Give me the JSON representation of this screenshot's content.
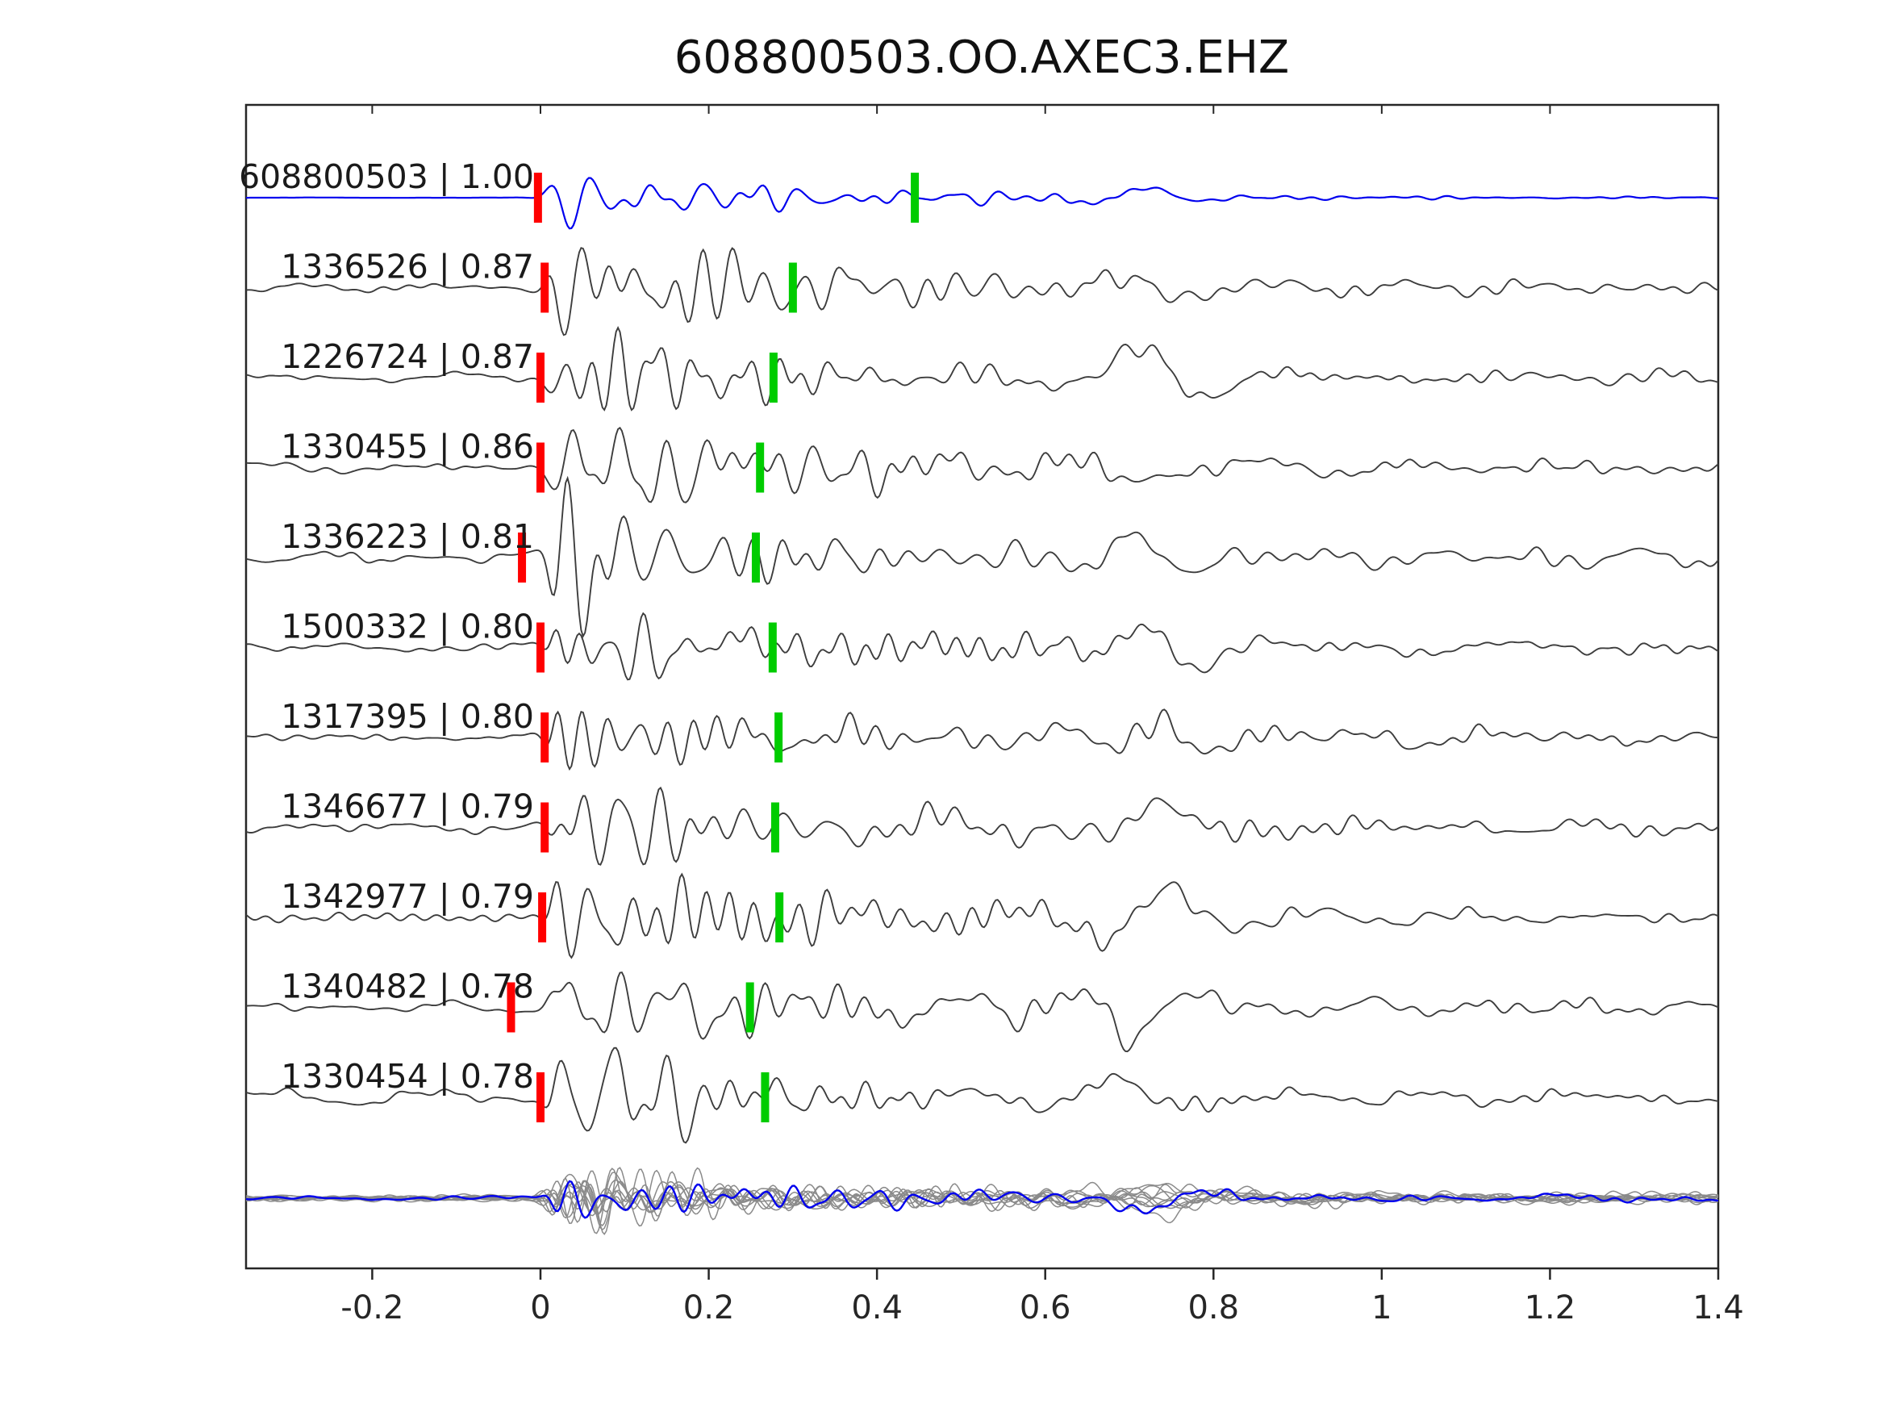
{
  "title": "608800503.OO.AXEC3.EHZ",
  "chart_data": {
    "type": "line",
    "title": "608800503.OO.AXEC3.EHZ",
    "description": "Template-matching detection waveforms: template trace (blue) with 10 detected event traces (gray), red pick markers near t=0 and green pick markers near t=0.25-0.45, plus all traces stacked/overlaid on the bottom row.",
    "x_axis": {
      "min": -0.35,
      "max": 1.4,
      "ticks": [
        -0.2,
        0,
        0.2,
        0.4,
        0.6,
        0.8,
        1,
        1.2,
        1.4
      ],
      "tick_labels": [
        "-0.2",
        "0",
        "0.2",
        "0.4",
        "0.6",
        "0.8",
        "1",
        "1.2",
        "1.4"
      ]
    },
    "traces": [
      {
        "label": "608800503 | 1.00",
        "id": "608800503",
        "correlation": 1.0,
        "is_template": true,
        "red_pick_x": -0.003,
        "green_pick_x": 0.445
      },
      {
        "label": "1336526 | 0.87",
        "id": "1336526",
        "correlation": 0.87,
        "is_template": false,
        "red_pick_x": 0.005,
        "green_pick_x": 0.3
      },
      {
        "label": "1226724 | 0.87",
        "id": "1226724",
        "correlation": 0.87,
        "is_template": false,
        "red_pick_x": 0.0,
        "green_pick_x": 0.277
      },
      {
        "label": "1330455 | 0.86",
        "id": "1330455",
        "correlation": 0.86,
        "is_template": false,
        "red_pick_x": 0.0,
        "green_pick_x": 0.261
      },
      {
        "label": "1336223 | 0.81",
        "id": "1336223",
        "correlation": 0.81,
        "is_template": false,
        "red_pick_x": -0.022,
        "green_pick_x": 0.256
      },
      {
        "label": "1500332 | 0.80",
        "id": "1500332",
        "correlation": 0.8,
        "is_template": false,
        "red_pick_x": 0.0,
        "green_pick_x": 0.276
      },
      {
        "label": "1317395 | 0.80",
        "id": "1317395",
        "correlation": 0.8,
        "is_template": false,
        "red_pick_x": 0.005,
        "green_pick_x": 0.283
      },
      {
        "label": "1346677 | 0.79",
        "id": "1346677",
        "correlation": 0.79,
        "is_template": false,
        "red_pick_x": 0.005,
        "green_pick_x": 0.279
      },
      {
        "label": "1342977 | 0.79",
        "id": "1342977",
        "correlation": 0.79,
        "is_template": false,
        "red_pick_x": 0.002,
        "green_pick_x": 0.284
      },
      {
        "label": "1340482 | 0.78",
        "id": "1340482",
        "correlation": 0.78,
        "is_template": false,
        "red_pick_x": -0.035,
        "green_pick_x": 0.249
      },
      {
        "label": "1330454 | 0.78",
        "id": "1330454",
        "correlation": 0.78,
        "is_template": false,
        "red_pick_x": 0.0,
        "green_pick_x": 0.267
      }
    ],
    "overlay_row": {
      "description": "all detection waveforms stacked (gray) with template waveform overlaid (blue)"
    },
    "colors": {
      "template_trace": "#0000ee",
      "detection_trace": "#3d3d3d",
      "overlay_stack": "#8a8a8a",
      "pick_marker_red": "#ff0000",
      "pick_marker_green": "#00cc00",
      "axis": "#262626",
      "background": "#ffffff"
    }
  }
}
